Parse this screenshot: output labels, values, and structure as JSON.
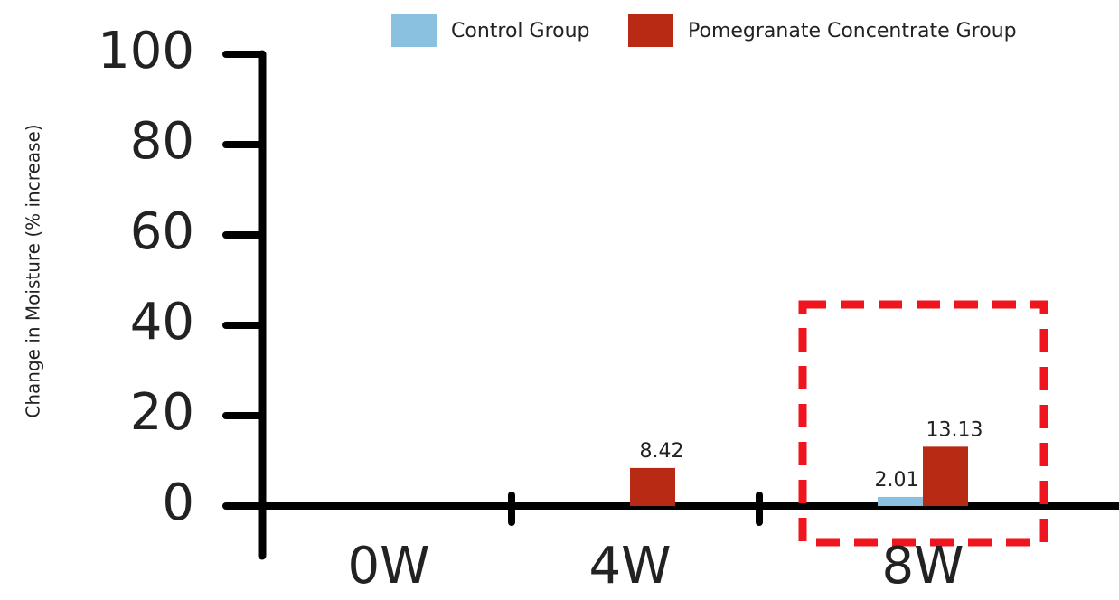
{
  "chart_data": {
    "type": "bar",
    "y_label": "Change in Moisture (% increase)",
    "categories": [
      "0W",
      "4W",
      "8W"
    ],
    "series": [
      {
        "name": "Control Group",
        "color": "#8bc1e0",
        "values": [
          null,
          null,
          2.01
        ]
      },
      {
        "name": "Pomegranate Concentrate Group",
        "color": "#b82a14",
        "values": [
          null,
          8.42,
          13.13
        ]
      }
    ],
    "ylim": [
      0,
      100
    ],
    "yticks": [
      0,
      20,
      40,
      60,
      80,
      100
    ],
    "legend": "top"
  }
}
